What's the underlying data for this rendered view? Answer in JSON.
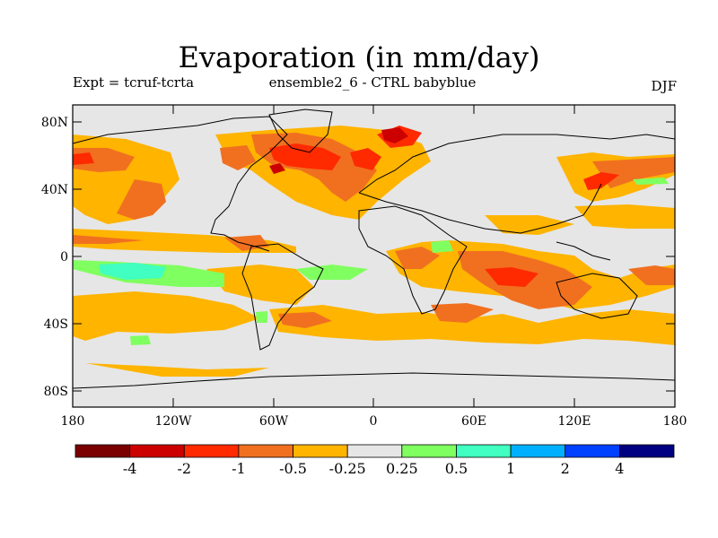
{
  "title": "Evaporation (in mm/day)",
  "left_string": "Expt = tcruf-tcrta",
  "center_string": "ensemble2_6 - CTRL babyblue",
  "right_string": "DJF",
  "lat_ticks": [
    "80N",
    "40N",
    "0",
    "40S",
    "80S"
  ],
  "lon_ticks": [
    "180",
    "120W",
    "60W",
    "0",
    "60E",
    "120E",
    "180"
  ],
  "colorbar": {
    "colors": [
      "#7a0000",
      "#cc0000",
      "#ff2a00",
      "#f07020",
      "#ffb400",
      "#e6e6e6",
      "#80ff60",
      "#40ffc0",
      "#00b0ff",
      "#0040ff",
      "#000080"
    ],
    "labels": [
      "-4",
      "-2",
      "-1",
      "-0.5",
      "-0.25",
      "0.25",
      "0.5",
      "1",
      "2",
      "4"
    ]
  },
  "colors": {
    "land_bg": "#e6e6e6",
    "coast": "#000000"
  }
}
